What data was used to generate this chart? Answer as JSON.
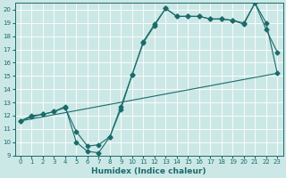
{
  "xlabel": "Humidex (Indice chaleur)",
  "xlim": [
    -0.5,
    23.5
  ],
  "ylim": [
    9,
    20.5
  ],
  "xticks": [
    0,
    1,
    2,
    3,
    4,
    5,
    6,
    7,
    8,
    9,
    10,
    11,
    12,
    13,
    14,
    15,
    16,
    17,
    18,
    19,
    20,
    21,
    22,
    23
  ],
  "yticks": [
    9,
    10,
    11,
    12,
    13,
    14,
    15,
    16,
    17,
    18,
    19,
    20
  ],
  "background_color": "#cce8e6",
  "line_color": "#1a6b6b",
  "grid_color": "#ffffff",
  "series1_x": [
    0,
    1,
    2,
    3,
    4,
    5,
    6,
    7,
    8,
    9,
    10,
    11,
    12,
    13,
    14,
    15,
    16,
    17,
    18,
    19,
    20,
    21,
    22,
    23
  ],
  "series1_y": [
    11.6,
    12.0,
    12.1,
    12.3,
    12.6,
    10.8,
    9.7,
    9.8,
    10.4,
    12.7,
    15.1,
    17.6,
    18.9,
    20.1,
    19.5,
    19.5,
    19.5,
    19.3,
    19.3,
    19.2,
    19.0,
    20.5,
    19.0,
    15.2
  ],
  "series2_x": [
    0,
    1,
    2,
    3,
    4,
    5,
    6,
    7,
    8,
    9,
    10,
    11,
    12,
    13,
    14,
    15,
    16,
    17,
    18,
    19,
    20,
    21,
    22,
    23
  ],
  "series2_y": [
    11.6,
    11.9,
    12.1,
    12.3,
    12.7,
    10.0,
    9.3,
    9.2,
    10.4,
    12.5,
    15.1,
    17.5,
    18.8,
    20.1,
    19.5,
    19.5,
    19.5,
    19.3,
    19.3,
    19.2,
    18.9,
    20.5,
    18.5,
    16.8
  ],
  "series3_x": [
    0,
    23
  ],
  "series3_y": [
    11.6,
    15.2
  ]
}
